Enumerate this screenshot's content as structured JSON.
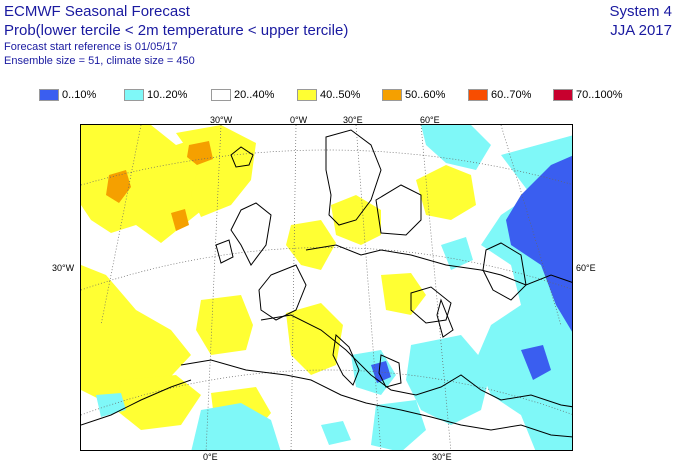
{
  "header": {
    "title": "ECMWF Seasonal Forecast",
    "subtitle": "Prob(lower tercile < 2m temperature < upper tercile)",
    "start_reference": "Forecast start reference is 01/05/17",
    "ensemble": "Ensemble size = 51, climate size = 450",
    "system": "System 4",
    "season": "JJA 2017"
  },
  "legend": [
    {
      "label": "0..10%",
      "color": "#3a5ef0"
    },
    {
      "label": "10..20%",
      "color": "#7ff8f8"
    },
    {
      "label": "20..40%",
      "color": "#ffffff"
    },
    {
      "label": "40..50%",
      "color": "#ffff33"
    },
    {
      "label": "50..60%",
      "color": "#f5a000"
    },
    {
      "label": "60..70%",
      "color": "#f84d00"
    },
    {
      "label": "70..100%",
      "color": "#c8002e"
    }
  ],
  "geo_labels": {
    "top_30w": "30°W",
    "top_0w": "0°W",
    "top_30e": "30°E",
    "top_60e": "60°E",
    "left_30w": "30°W",
    "right_60e": "60°E",
    "bottom_0e": "0°E",
    "bottom_30e": "30°E"
  }
}
